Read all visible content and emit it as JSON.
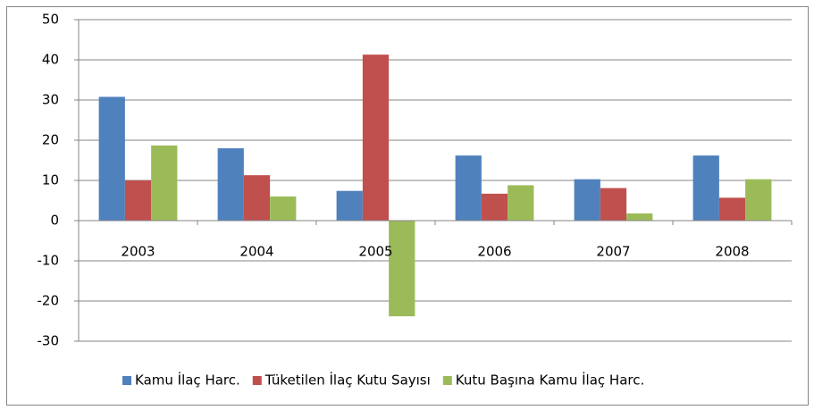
{
  "chart_data": {
    "type": "bar",
    "categories": [
      "2003",
      "2004",
      "2005",
      "2006",
      "2007",
      "2008"
    ],
    "series": [
      {
        "name": "Kamu İlaç Harc.",
        "color": "#4f81bd",
        "values": [
          30.8,
          18,
          7.4,
          16.2,
          10.3,
          16.2
        ]
      },
      {
        "name": "Tüketilen İlaç Kutu Sayısı",
        "color": "#c0504d",
        "values": [
          10,
          11.3,
          41.3,
          6.7,
          8.1,
          5.7
        ]
      },
      {
        "name": "Kutu Başına Kamu İlaç Harc.",
        "color": "#9bbb59",
        "values": [
          18.7,
          6,
          -23.8,
          8.8,
          1.8,
          10.3
        ]
      }
    ],
    "ylim": [
      -30,
      50
    ],
    "yticks": [
      -30,
      -20,
      -10,
      0,
      10,
      20,
      30,
      40,
      50
    ],
    "grid": true,
    "legend": "bottom"
  }
}
